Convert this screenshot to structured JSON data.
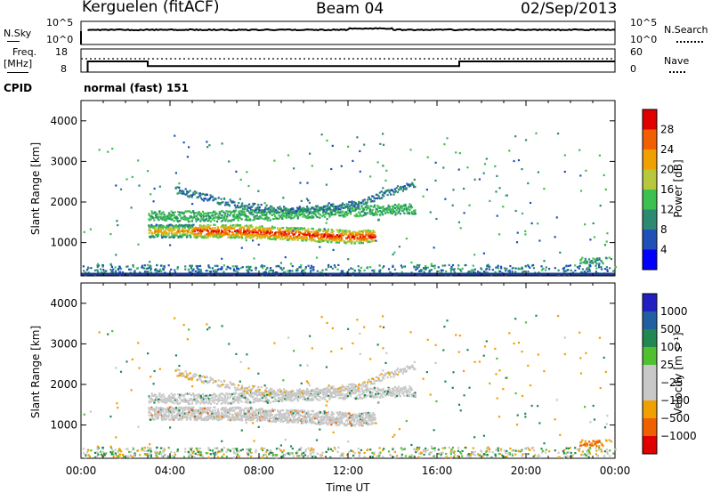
{
  "header": {
    "station": "Kerguelen (fitACF)",
    "beam": "Beam 04",
    "date": "02/Sep/2013"
  },
  "nsky_panel": {
    "left_label": "N.Sky",
    "left_ticks": [
      "10^5",
      "10^0"
    ],
    "right_label": "N.Search",
    "right_ticks": [
      "10^5",
      "10^0"
    ]
  },
  "freq_panel": {
    "left_label_line1": "Freq.",
    "left_label_line2": "[MHz]",
    "left_ticks": [
      "18",
      "8"
    ],
    "right_label": "Nave",
    "right_ticks": [
      "60",
      "0"
    ],
    "cpid_label": "CPID",
    "cpid_value": "normal (fast) 151",
    "freq_schedule": [
      {
        "t_start": 0.3,
        "t_end": 3.0,
        "freq_mhz": 12.6
      },
      {
        "t_start": 3.0,
        "t_end": 17.0,
        "freq_mhz": 10.6
      },
      {
        "t_start": 17.0,
        "t_end": 24.0,
        "freq_mhz": 12.6
      }
    ],
    "nave_value": 40
  },
  "chart_data": [
    {
      "type": "heatmap",
      "name": "power",
      "ylabel": "Slant Range [km]",
      "xlim": [
        0,
        24
      ],
      "ylim": [
        180,
        4500
      ],
      "yticks": [
        "1000",
        "2000",
        "3000",
        "4000"
      ],
      "colorbar": {
        "label": "Power [dB]",
        "ticks": [
          "4",
          "8",
          "12",
          "16",
          "20",
          "24",
          "28"
        ],
        "colors": [
          "#0000ff",
          "#1f50b8",
          "#2d8a72",
          "#3cc050",
          "#b8c83c",
          "#f0a000",
          "#f06000",
          "#e00000"
        ]
      }
    },
    {
      "type": "heatmap",
      "name": "velocity",
      "ylabel": "Slant Range [km]",
      "xlabel": "Time UT",
      "xlim": [
        0,
        24
      ],
      "ylim": [
        180,
        4500
      ],
      "yticks": [
        "1000",
        "2000",
        "3000",
        "4000"
      ],
      "xticks": [
        "00:00",
        "04:00",
        "08:00",
        "12:00",
        "16:00",
        "20:00",
        "00:00"
      ],
      "colorbar": {
        "label": "Velocity [m s⁻¹]",
        "ticks": [
          "1000",
          "500",
          "100",
          "25",
          "−25",
          "−100",
          "−500",
          "−1000"
        ],
        "colors": [
          "#2020c0",
          "#2060a0",
          "#208850",
          "#50c030",
          "#c8c8c8",
          "#c8c8c8",
          "#f0a000",
          "#f06000",
          "#e00000"
        ]
      }
    }
  ]
}
